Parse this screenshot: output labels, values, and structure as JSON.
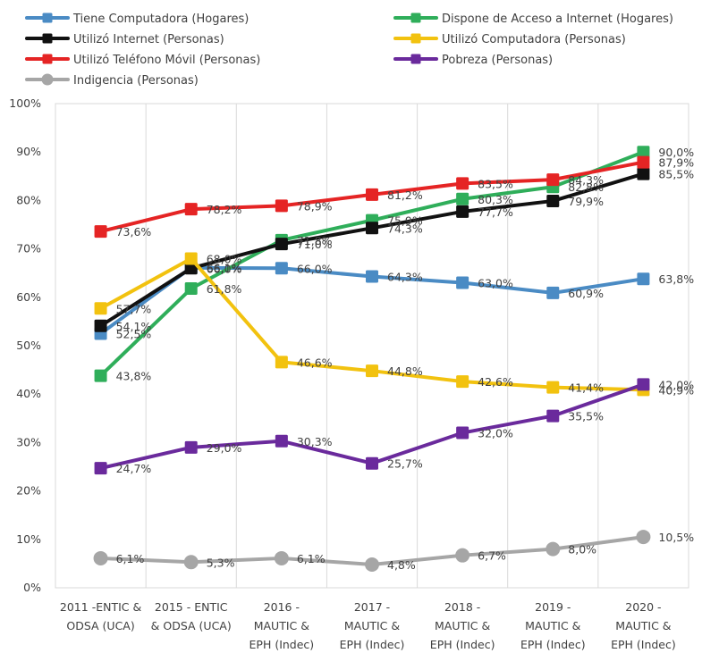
{
  "chart_data": {
    "type": "line",
    "categories": [
      [
        "2011 -ENTIC &",
        "ODSA (UCA)"
      ],
      [
        "2015 - ENTIC",
        "& ODSA (UCA)"
      ],
      [
        "2016 -",
        "MAUTIC &",
        "EPH (Indec)"
      ],
      [
        "2017 -",
        "MAUTIC &",
        "EPH (Indec)"
      ],
      [
        "2018 -",
        "MAUTIC &",
        "EPH (Indec)"
      ],
      [
        "2019 -",
        "MAUTIC &",
        "EPH (Indec)"
      ],
      [
        "2020 -",
        "MAUTIC &",
        "EPH (Indec)"
      ]
    ],
    "y_ticks": [
      "0%",
      "10%",
      "20%",
      "30%",
      "40%",
      "50%",
      "60%",
      "70%",
      "80%",
      "90%",
      "100%"
    ],
    "ylim": [
      0,
      100
    ],
    "grid": "vertical",
    "legend": "top",
    "series": [
      {
        "name": "Tiene Computadora (Hogares)",
        "color": "#4a8bc4",
        "marker": "square",
        "values": [
          52.5,
          66.1,
          66.0,
          64.3,
          63.0,
          60.9,
          63.8
        ],
        "labels": [
          "52,5%",
          "66,1%",
          "66,0%",
          "64,3%",
          "63,0%",
          "60,9%",
          "63,8%"
        ]
      },
      {
        "name": "Dispone de Acceso a Internet (Hogares)",
        "color": "#2fae5a",
        "marker": "square",
        "values": [
          43.8,
          61.8,
          71.8,
          75.9,
          80.3,
          82.8,
          90.0
        ],
        "labels": [
          "43,8%",
          "61,8%",
          "71,8%",
          "75,9%",
          "80,3%",
          "82,8%",
          "90,0%"
        ]
      },
      {
        "name": "Utilizó Internet (Personas)",
        "color": "#111111",
        "marker": "square",
        "values": [
          54.1,
          66.0,
          71.0,
          74.3,
          77.7,
          79.9,
          85.5
        ],
        "labels": [
          "54,1%",
          "66,0%",
          "71,0%",
          "74,3%",
          "77,7%",
          "79,9%",
          "85,5%"
        ]
      },
      {
        "name": "Utilizó Computadora (Personas)",
        "color": "#f2c20f",
        "marker": "square",
        "values": [
          57.7,
          68.0,
          46.6,
          44.8,
          42.6,
          41.4,
          40.9
        ],
        "labels": [
          "57,7%",
          "68,0%",
          "46,6%",
          "44,8%",
          "42,6%",
          "41,4%",
          "40,9%"
        ]
      },
      {
        "name": "Utilizó Teléfono Móvil (Personas)",
        "color": "#e52424",
        "marker": "square",
        "values": [
          73.6,
          78.2,
          78.9,
          81.2,
          83.5,
          84.3,
          87.9
        ],
        "labels": [
          "73,6%",
          "78,2%",
          "78,9%",
          "81,2%",
          "83,5%",
          "84,3%",
          "87,9%"
        ]
      },
      {
        "name": "Pobreza (Personas)",
        "color": "#6a2a9c",
        "marker": "square",
        "values": [
          24.7,
          29.0,
          30.3,
          25.7,
          32.0,
          35.5,
          42.0
        ],
        "labels": [
          "24,7%",
          "29,0%",
          "30,3%",
          "25,7%",
          "32,0%",
          "35,5%",
          "42,0%"
        ]
      },
      {
        "name": "Indigencia (Personas)",
        "color": "#a6a6a6",
        "marker": "circle",
        "values": [
          6.1,
          5.3,
          6.1,
          4.8,
          6.7,
          8.0,
          10.5
        ],
        "labels": [
          "6,1%",
          "5,3%",
          "6,1%",
          "4,8%",
          "6,7%",
          "8,0%",
          "10,5%"
        ]
      }
    ]
  }
}
